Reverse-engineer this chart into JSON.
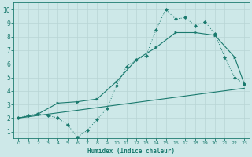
{
  "bg_color": "#cde8e8",
  "grid_color": "#b8d5d5",
  "line_color": "#1a7a6e",
  "xlabel": "Humidex (Indice chaleur)",
  "xlim": [
    -0.5,
    23.5
  ],
  "ylim": [
    0.5,
    10.5
  ],
  "xticks": [
    0,
    1,
    2,
    3,
    4,
    5,
    6,
    7,
    8,
    9,
    10,
    11,
    12,
    13,
    14,
    15,
    16,
    17,
    18,
    19,
    20,
    21,
    22,
    23
  ],
  "yticks": [
    1,
    2,
    3,
    4,
    5,
    6,
    7,
    8,
    9,
    10
  ],
  "line1_x": [
    0,
    1,
    2,
    3,
    4,
    5,
    6,
    7,
    8,
    9,
    10,
    11,
    12,
    13,
    14,
    15,
    16,
    17,
    18,
    19,
    20,
    21,
    22,
    23
  ],
  "line1_y": [
    2.0,
    2.2,
    2.3,
    2.2,
    2.0,
    1.5,
    0.6,
    1.1,
    1.9,
    2.7,
    4.4,
    5.8,
    6.3,
    6.6,
    8.5,
    10.0,
    9.3,
    9.4,
    8.8,
    9.1,
    8.2,
    6.5,
    5.0,
    4.5
  ],
  "line2_x": [
    0,
    23
  ],
  "line2_y": [
    2.0,
    4.2
  ],
  "line3_x": [
    0,
    2,
    4,
    6,
    8,
    10,
    12,
    14,
    16,
    18,
    20,
    22,
    23
  ],
  "line3_y": [
    2.0,
    2.3,
    3.1,
    3.2,
    3.4,
    4.7,
    6.3,
    7.2,
    8.3,
    8.3,
    8.1,
    6.5,
    4.5
  ]
}
